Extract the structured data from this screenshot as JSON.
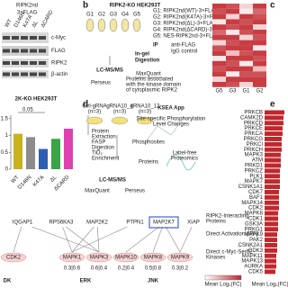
{
  "panel_a": {
    "construct": "RIPK2nd",
    "tag": "3×FLAG",
    "lanes": [
      "WT",
      "D146N",
      "K47A",
      "ΔL",
      "ΔCARD"
    ],
    "blots": [
      "c-Myc",
      "FLAG",
      "RIPK2",
      "β-actin"
    ]
  },
  "panel_b": {
    "letter": "b",
    "title": "RIPK2-KO HEK293T",
    "groups": [
      "G1",
      "G2",
      "G3",
      "G4",
      "G5"
    ],
    "legend": [
      "G1: RIPK2nd(WT)-3×FLAG",
      "G2: RIPK2nd(K47A)-3×FLAG",
      "G3: RIPK2nd(ΔL)-3×FLAG",
      "G4: RIPK2nd(ΔCARD)-3×FLAG",
      "G5: NES-RIPK2nd-3×FLAG"
    ],
    "ip": "IP",
    "digestion": [
      "In-gel",
      "Digestion"
    ],
    "ms": "LC-MS/MS",
    "maxquant": "MaxQuant",
    "perseus": "Perseus",
    "result": [
      "Proteins associated",
      "with the kinase domain",
      "of cytoplasmic RIPK2"
    ],
    "antibodies": [
      "anti-FLAG",
      "IgG control"
    ]
  },
  "panel_c": {
    "letter": "c",
    "columns": [
      "G5",
      "G3",
      "G1",
      "G2"
    ],
    "values": [
      [
        0.9,
        0.8,
        0.2,
        0.9
      ],
      [
        0.8,
        0.9,
        0.1,
        0.7
      ],
      [
        0.9,
        0.2,
        0.9,
        0.8
      ],
      [
        0.1,
        0.9,
        0.8,
        0.9
      ],
      [
        0.9,
        0.8,
        0.9,
        0.2
      ],
      [
        0.7,
        0.1,
        0.8,
        0.9
      ],
      [
        0.9,
        0.9,
        0.2,
        0.8
      ],
      [
        0.2,
        0.8,
        0.9,
        0.9
      ],
      [
        0.8,
        0.9,
        0.9,
        0.1
      ],
      [
        0.9,
        0.3,
        0.8,
        0.9
      ],
      [
        0.1,
        0.9,
        0.9,
        0.8
      ],
      [
        0.9,
        0.8,
        0.1,
        0.9
      ],
      [
        0.8,
        0.9,
        0.9,
        0.3
      ],
      [
        0.9,
        0.1,
        0.8,
        0.8
      ],
      [
        0.2,
        0.9,
        0.9,
        0.9
      ],
      [
        0.9,
        0.8,
        0.2,
        0.9
      ]
    ]
  },
  "panel_bar": {
    "type": "bar",
    "title": "2K-KO HEK293T",
    "categories": [
      "WT",
      "D146N",
      "K47A",
      "ΔL",
      "ΔCARD"
    ],
    "values": [
      1.05,
      0.95,
      0.6,
      0.9,
      1.2
    ],
    "colors": [
      "#c8b21e",
      "#8c8c8c",
      "#2f5fb3",
      "#3aa447",
      "#e040b0"
    ],
    "ylim": [
      0,
      1.6
    ],
    "yticks": [
      0,
      0.5,
      1,
      1.5
    ],
    "annotation": "0.05"
  },
  "panel_d": {
    "letter": "d",
    "samples": [
      "Ctrl-gRNA",
      "gRNA10_4",
      "gRNA10_12"
    ],
    "n": "(n=3)",
    "steps": [
      "Protein",
      "Extraction",
      "FASP",
      "Digestion",
      "TiO₂",
      "Enrichment"
    ],
    "ms": "LC-MS/MS",
    "maxquant": "MaxQuant",
    "perseus": "Perseus",
    "ksea": "KSEA App",
    "sites": [
      "Site-specific Phosphorylation",
      "Level Changes"
    ],
    "phospho": "Phosphosites",
    "proteins": "Proteins",
    "lfq": [
      "Label-free",
      "Proteomics"
    ]
  },
  "panel_e": {
    "letter": "e",
    "type": "bar",
    "categories": [
      "PRKCB",
      "CAMK2D",
      "PRKCD",
      "PRKCE",
      "PRKCA",
      "PRKCG",
      "PRKCI",
      "PRKCH",
      "MAPK3",
      "ATM",
      "PRKD1",
      "PRKCZ",
      "PLK1",
      "MAPK7",
      "CSNK1A1",
      "CDK7",
      "BAF1",
      "MAPK14",
      "CDK2",
      "MAPK8",
      "CDK1",
      "GSK3A",
      "PRKG1",
      "MAPK9",
      "PAK2",
      "CSNK2A1",
      "CDK3",
      "MAPK11",
      "MAPK13",
      "AURKA",
      "CDK5"
    ],
    "values": [
      2.2,
      2.1,
      2.1,
      2.0,
      2.0,
      1.9,
      1.9,
      1.9,
      1.8,
      1.8,
      1.8,
      1.7,
      1.7,
      1.7,
      1.7,
      1.6,
      1.6,
      1.6,
      1.6,
      1.5,
      1.5,
      1.5,
      1.5,
      1.4,
      1.4,
      1.4,
      1.4,
      1.3,
      1.3,
      1.3,
      1.2
    ],
    "color": "#c0272d",
    "xlim": [
      0,
      2.4
    ],
    "xlabel": "Mean Log₂(FC)"
  },
  "network": {
    "top_nodes": [
      "IQGAP1",
      "RPS6KA3",
      "MAP2K2",
      "PTPN1",
      "MAP2K7",
      "XIAP"
    ],
    "bottom_nodes": [
      "CDK2",
      "MAPK1",
      "MAPK3",
      "MAPK10",
      "MAPK8",
      "MAPK9"
    ],
    "scores": [
      "0.3|0.6",
      "0.6|0.4",
      "0.2|0.4",
      "0.5|0.8",
      "0.3|0.2"
    ],
    "groups": [
      "DK",
      "ERK",
      "JNK"
    ],
    "legend": [
      [
        "RIPK2-Interacting",
        "Proteins"
      ],
      [
        "Direct Activation (IPA)"
      ],
      [
        "Direct c-Myc-Ser62",
        "Kinases"
      ]
    ],
    "colorbar_label": "Mean Log₂(FC)"
  }
}
